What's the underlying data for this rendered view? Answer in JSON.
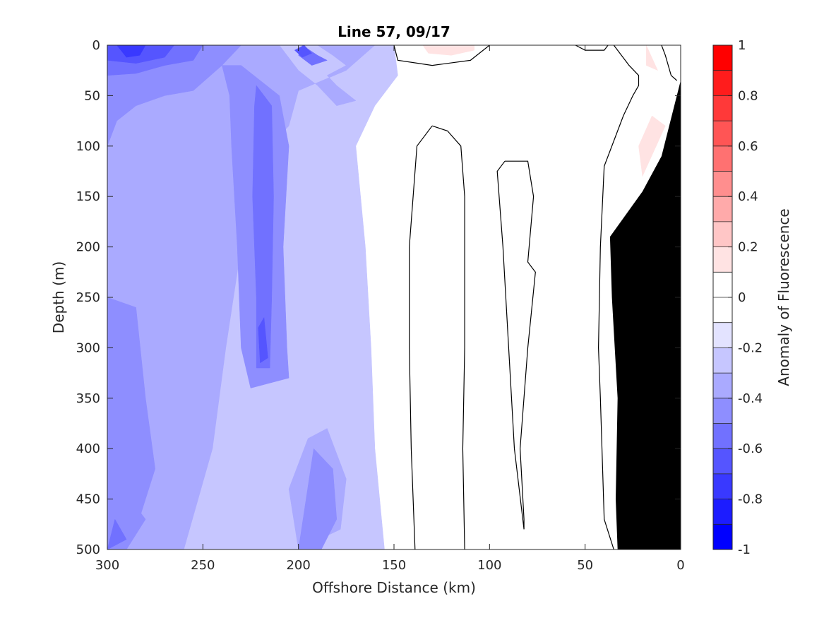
{
  "chart_data": {
    "type": "heatmap",
    "subtype": "filled-contour-section",
    "title": "Line 57, 09/17",
    "xlabel": "Offshore Distance (km)",
    "ylabel": "Depth (m)",
    "colorbar_label": "Anomaly of Fluorescence",
    "xlim": [
      300,
      0
    ],
    "x_reversed": true,
    "ylim": [
      0,
      500
    ],
    "y_reversed": true,
    "x_ticks": [
      300,
      250,
      200,
      150,
      100,
      50,
      0
    ],
    "x_tick_labels": [
      "300",
      "250",
      "200",
      "150",
      "100",
      "50",
      "0"
    ],
    "y_ticks": [
      0,
      50,
      100,
      150,
      200,
      250,
      300,
      350,
      400,
      450,
      500
    ],
    "y_tick_labels": [
      "0",
      "50",
      "100",
      "150",
      "200",
      "250",
      "300",
      "350",
      "400",
      "450",
      "500"
    ],
    "colorbar": {
      "range": [
        -1,
        1
      ],
      "ticks": [
        1,
        0.8,
        0.6,
        0.4,
        0.2,
        0,
        -0.2,
        -0.4,
        -0.6,
        -0.8,
        -1
      ],
      "tick_labels": [
        "1",
        "0.8",
        "0.6",
        "0.4",
        "0.2",
        "0",
        "-0.2",
        "-0.4",
        "-0.6",
        "-0.8",
        "-1"
      ],
      "levels": [
        {
          "from": 0.9,
          "to": 1.0,
          "color": "#ff0000"
        },
        {
          "from": 0.8,
          "to": 0.9,
          "color": "#ff1c1c"
        },
        {
          "from": 0.7,
          "to": 0.8,
          "color": "#ff3939"
        },
        {
          "from": 0.6,
          "to": 0.7,
          "color": "#ff5555"
        },
        {
          "from": 0.5,
          "to": 0.6,
          "color": "#ff7171"
        },
        {
          "from": 0.4,
          "to": 0.5,
          "color": "#ff8e8e"
        },
        {
          "from": 0.3,
          "to": 0.4,
          "color": "#ffaaaa"
        },
        {
          "from": 0.2,
          "to": 0.3,
          "color": "#ffc6c6"
        },
        {
          "from": 0.1,
          "to": 0.2,
          "color": "#ffe3e3"
        },
        {
          "from": 0.0,
          "to": 0.1,
          "color": "#ffffff"
        },
        {
          "from": -0.1,
          "to": 0.0,
          "color": "#ffffff"
        },
        {
          "from": -0.2,
          "to": -0.1,
          "color": "#e3e3ff"
        },
        {
          "from": -0.3,
          "to": -0.2,
          "color": "#c6c6ff"
        },
        {
          "from": -0.4,
          "to": -0.3,
          "color": "#aaaaff"
        },
        {
          "from": -0.5,
          "to": -0.4,
          "color": "#8e8eff"
        },
        {
          "from": -0.6,
          "to": -0.5,
          "color": "#7171ff"
        },
        {
          "from": -0.7,
          "to": -0.6,
          "color": "#5555ff"
        },
        {
          "from": -0.8,
          "to": -0.7,
          "color": "#3939ff"
        },
        {
          "from": -0.9,
          "to": -0.8,
          "color": "#1c1cff"
        },
        {
          "from": -1.0,
          "to": -0.9,
          "color": "#0000ff"
        }
      ]
    },
    "fields": [
      {
        "anomaly": -0.25,
        "regions": [
          [
            [
              300,
              0
            ],
            [
              150,
              0
            ],
            [
              148,
              30
            ],
            [
              160,
              60
            ],
            [
              170,
              100
            ],
            [
              165,
              200
            ],
            [
              162,
              300
            ],
            [
              160,
              400
            ],
            [
              155,
              500
            ],
            [
              300,
              500
            ]
          ]
        ]
      },
      {
        "anomaly": -0.35,
        "regions": [
          [
            [
              300,
              0
            ],
            [
              210,
              0
            ],
            [
              200,
              25
            ],
            [
              190,
              40
            ],
            [
              180,
              60
            ],
            [
              170,
              55
            ],
            [
              180,
              40
            ],
            [
              185,
              30
            ],
            [
              175,
              20
            ],
            [
              182,
              10
            ],
            [
              190,
              0
            ],
            [
              160,
              0
            ],
            [
              175,
              25
            ],
            [
              200,
              45
            ],
            [
              205,
              80
            ],
            [
              215,
              100
            ],
            [
              225,
              130
            ],
            [
              230,
              200
            ],
            [
              238,
              300
            ],
            [
              245,
              400
            ],
            [
              260,
              500
            ],
            [
              300,
              500
            ]
          ],
          [
            [
              195,
              390
            ],
            [
              185,
              380
            ],
            [
              175,
              430
            ],
            [
              178,
              480
            ],
            [
              200,
              500
            ],
            [
              205,
              440
            ]
          ]
        ]
      },
      {
        "anomaly": -0.45,
        "regions": [
          [
            [
              300,
              0
            ],
            [
              230,
              0
            ],
            [
              240,
              20
            ],
            [
              255,
              45
            ],
            [
              270,
              50
            ],
            [
              285,
              60
            ],
            [
              295,
              75
            ],
            [
              300,
              100
            ]
          ],
          [
            [
              300,
              250
            ],
            [
              285,
              260
            ],
            [
              280,
              350
            ],
            [
              275,
              420
            ],
            [
              285,
              480
            ],
            [
              300,
              500
            ]
          ],
          [
            [
              230,
              20
            ],
            [
              210,
              50
            ],
            [
              205,
              100
            ],
            [
              208,
              200
            ],
            [
              206,
              300
            ],
            [
              205,
              330
            ],
            [
              225,
              340
            ],
            [
              230,
              300
            ],
            [
              232,
              200
            ],
            [
              235,
              100
            ],
            [
              236,
              50
            ],
            [
              240,
              20
            ]
          ],
          [
            [
              192,
              400
            ],
            [
              182,
              420
            ],
            [
              180,
              470
            ],
            [
              188,
              500
            ],
            [
              200,
              500
            ],
            [
              196,
              450
            ]
          ],
          [
            [
              292,
              440
            ],
            [
              280,
              470
            ],
            [
              290,
              500
            ],
            [
              300,
              500
            ],
            [
              300,
              450
            ]
          ]
        ]
      },
      {
        "anomaly": -0.55,
        "regions": [
          [
            [
              300,
              0
            ],
            [
              250,
              0
            ],
            [
              255,
              15
            ],
            [
              270,
              20
            ],
            [
              285,
              28
            ],
            [
              300,
              30
            ]
          ],
          [
            [
              222,
              40
            ],
            [
              214,
              60
            ],
            [
              213,
              150
            ],
            [
              214,
              250
            ],
            [
              215,
              320
            ],
            [
              222,
              320
            ],
            [
              222,
              250
            ],
            [
              224,
              150
            ],
            [
              223,
              60
            ]
          ],
          [
            [
              198,
              0
            ],
            [
              190,
              10
            ],
            [
              185,
              15
            ],
            [
              193,
              20
            ],
            [
              200,
              10
            ]
          ],
          [
            [
              296,
              470
            ],
            [
              290,
              490
            ],
            [
              300,
              500
            ]
          ]
        ]
      },
      {
        "anomaly": -0.65,
        "regions": [
          [
            [
              300,
              0
            ],
            [
              265,
              0
            ],
            [
              270,
              12
            ],
            [
              285,
              18
            ],
            [
              300,
              15
            ]
          ],
          [
            [
              218,
              270
            ],
            [
              216,
              310
            ],
            [
              220,
              315
            ],
            [
              221,
              280
            ]
          ],
          [
            [
              197,
              0
            ],
            [
              193,
              8
            ],
            [
              198,
              12
            ],
            [
              202,
              5
            ]
          ]
        ]
      },
      {
        "anomaly": -0.75,
        "regions": [
          [
            [
              295,
              0
            ],
            [
              280,
              0
            ],
            [
              283,
              10
            ],
            [
              290,
              12
            ]
          ]
        ]
      },
      {
        "anomaly": 0.05,
        "regions": [
          [
            [
              130,
              90
            ],
            [
              140,
              110
            ],
            [
              142,
              200
            ],
            [
              142,
              300
            ],
            [
              141,
              400
            ],
            [
              139,
              500
            ],
            [
              113,
              500
            ],
            [
              114,
              400
            ],
            [
              113,
              300
            ],
            [
              113,
              150
            ],
            [
              116,
              100
            ],
            [
              122,
              85
            ]
          ],
          [
            [
              96,
              120
            ],
            [
              88,
              112
            ],
            [
              80,
              115
            ],
            [
              83,
              200
            ],
            [
              77,
              220
            ],
            [
              80,
              300
            ],
            [
              84,
              400
            ],
            [
              80,
              450
            ],
            [
              86,
              480
            ],
            [
              88,
              400
            ],
            [
              92,
              300
            ],
            [
              94,
              200
            ],
            [
              95,
              150
            ]
          ],
          [
            [
              42,
              0
            ],
            [
              35,
              20
            ],
            [
              22,
              60
            ],
            [
              10,
              80
            ],
            [
              0,
              35
            ],
            [
              0,
              500
            ],
            [
              35,
              500
            ],
            [
              40,
              470
            ],
            [
              42,
              400
            ],
            [
              43,
              300
            ],
            [
              42,
              200
            ],
            [
              40,
              100
            ],
            [
              38,
              80
            ],
            [
              27,
              40
            ],
            [
              28,
              20
            ],
            [
              30,
              0
            ]
          ],
          [
            [
              147,
              0
            ],
            [
              130,
              20
            ],
            [
              106,
              12
            ],
            [
              102,
              0
            ]
          ]
        ]
      },
      {
        "anomaly": 0.15,
        "regions": [
          [
            [
              135,
              0
            ],
            [
              132,
              8
            ],
            [
              120,
              10
            ],
            [
              108,
              5
            ],
            [
              108,
              0
            ]
          ],
          [
            [
              15,
              70
            ],
            [
              8,
              80
            ],
            [
              20,
              130
            ],
            [
              22,
              100
            ]
          ],
          [
            [
              18,
              0
            ],
            [
              12,
              25
            ],
            [
              18,
              20
            ]
          ]
        ]
      }
    ],
    "zero_contours": [
      [
        [
          150,
          0
        ],
        [
          148,
          15
        ],
        [
          130,
          20
        ],
        [
          110,
          15
        ],
        [
          100,
          0
        ]
      ],
      [
        [
          130,
          80
        ],
        [
          138,
          100
        ],
        [
          142,
          200
        ],
        [
          142,
          300
        ],
        [
          141,
          400
        ],
        [
          139,
          500
        ]
      ],
      [
        [
          113,
          500
        ],
        [
          114,
          400
        ],
        [
          113,
          300
        ],
        [
          113,
          150
        ],
        [
          115,
          100
        ],
        [
          122,
          85
        ],
        [
          130,
          80
        ]
      ],
      [
        [
          92,
          115
        ],
        [
          96,
          125
        ],
        [
          93,
          200
        ],
        [
          90,
          300
        ],
        [
          87,
          400
        ],
        [
          82,
          480
        ],
        [
          82,
          470
        ],
        [
          84,
          400
        ],
        [
          80,
          300
        ],
        [
          76,
          225
        ],
        [
          80,
          215
        ],
        [
          77,
          150
        ],
        [
          80,
          115
        ],
        [
          92,
          115
        ]
      ],
      [
        [
          55,
          0
        ],
        [
          50,
          5
        ],
        [
          40,
          5
        ],
        [
          38,
          0
        ]
      ],
      [
        [
          35,
          0
        ],
        [
          27,
          20
        ],
        [
          22,
          30
        ],
        [
          22,
          40
        ],
        [
          25,
          50
        ],
        [
          30,
          70
        ],
        [
          34,
          90
        ],
        [
          40,
          120
        ],
        [
          42,
          200
        ],
        [
          43,
          300
        ],
        [
          42,
          350
        ],
        [
          40,
          470
        ],
        [
          35,
          500
        ]
      ],
      [
        [
          10,
          0
        ],
        [
          8,
          10
        ],
        [
          5,
          30
        ],
        [
          2,
          35
        ]
      ]
    ],
    "seafloor": {
      "color": "#000000",
      "polygon": [
        [
          0,
          35
        ],
        [
          0,
          500
        ],
        [
          33,
          500
        ],
        [
          34,
          450
        ],
        [
          33,
          350
        ],
        [
          36,
          250
        ],
        [
          37,
          190
        ],
        [
          20,
          145
        ],
        [
          10,
          110
        ],
        [
          0,
          35
        ]
      ]
    }
  }
}
